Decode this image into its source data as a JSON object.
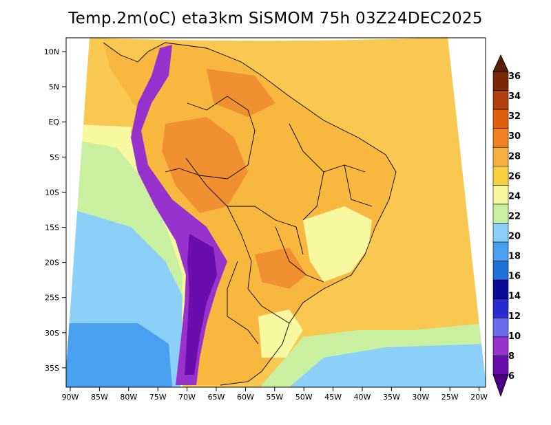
{
  "title": "Temp.2m(oC) eta3km SiSMOM 75h 03Z24DEC2025",
  "axes": {
    "lat_labels": [
      "10N",
      "5N",
      "EQ",
      "5S",
      "10S",
      "15S",
      "20S",
      "25S",
      "30S",
      "35S"
    ],
    "lon_labels": [
      "90W",
      "85W",
      "80W",
      "75W",
      "70W",
      "65W",
      "60W",
      "55W",
      "50W",
      "45W",
      "40W",
      "35W",
      "30W",
      "25W",
      "20W"
    ]
  },
  "colorbar": {
    "labels": [
      "6",
      "8",
      "10",
      "12",
      "14",
      "16",
      "18",
      "20",
      "22",
      "24",
      "26",
      "28",
      "30",
      "32",
      "34",
      "36"
    ],
    "colors": [
      "#6a0dad",
      "#9932cc",
      "#6b6bf0",
      "#2a2ad0",
      "#0b0b9a",
      "#2070d8",
      "#4aa0f0",
      "#8ad0f8",
      "#c8f0a0",
      "#f8f8a0",
      "#f8d040",
      "#f8b040",
      "#f08020",
      "#e06010",
      "#b04010",
      "#7a2808"
    ],
    "top_arrow_color": "#5a1e08",
    "bottom_arrow_color": "#4b0082"
  },
  "map_colors": {
    "ocean_warm": "#f8c850",
    "ocean_mild": "#f8f8a0",
    "ocean_cool": "#c8f0a0",
    "ocean_cold": "#8ad0f8",
    "ocean_colder": "#4aa0f0",
    "land_hot": "#f09030",
    "land": "#f8b840",
    "highland": "#f8f8a0",
    "andes": "#9932cc",
    "andes_core": "#6a0dad",
    "borders": "#000000"
  }
}
